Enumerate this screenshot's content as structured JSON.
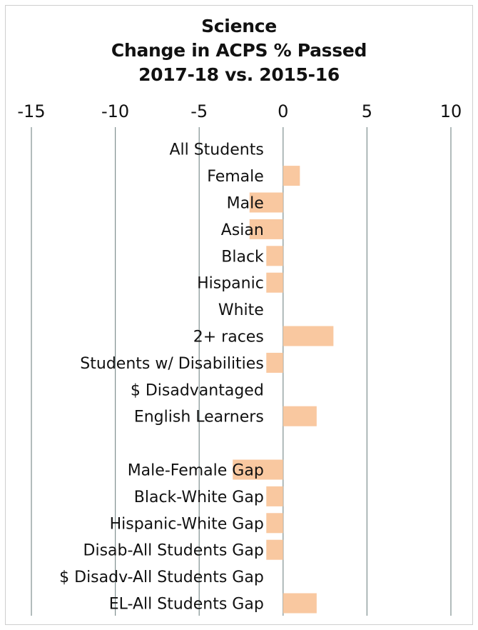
{
  "chart_data": {
    "type": "bar",
    "orientation": "horizontal",
    "title_lines": [
      "Science",
      "Change in ACPS % Passed",
      "2017-18 vs. 2015-16"
    ],
    "x_ticks": [
      "-15",
      "-10",
      "-5",
      "0",
      "5",
      "10"
    ],
    "xlim": [
      -15,
      10
    ],
    "grid": true,
    "bar_color": "#f9c8a0",
    "categories": [
      "All Students",
      "Female",
      "Male",
      "Asian",
      "Black",
      "Hispanic",
      "White",
      "2+ races",
      "Students w/ Disabilities",
      "$ Disadvantaged",
      "English Learners",
      "",
      "Male-Female Gap",
      "Black-White Gap",
      "Hispanic-White Gap",
      "Disab-All Students Gap",
      "$ Disadv-All Students Gap",
      "EL-All Students Gap"
    ],
    "values": [
      0,
      1,
      -2,
      -2,
      -1,
      -1,
      0,
      3,
      -1,
      0,
      2,
      null,
      -3,
      -1,
      -1,
      -1,
      0,
      2
    ]
  }
}
